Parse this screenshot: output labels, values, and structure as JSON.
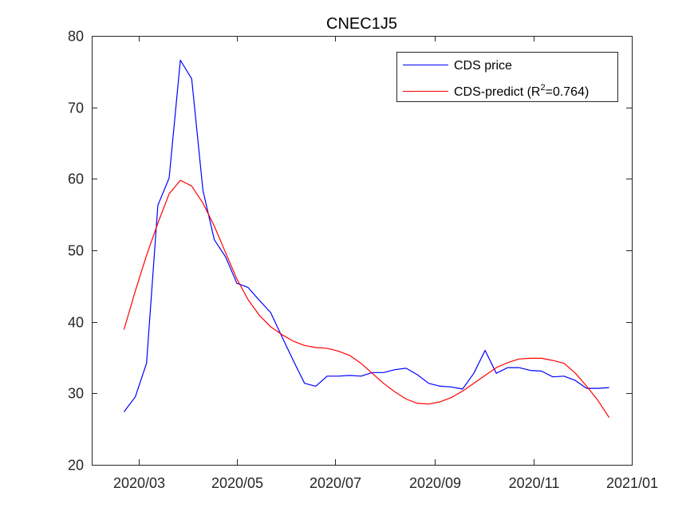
{
  "chart_data": {
    "type": "line",
    "title": "CNEC1J5",
    "xlabel": "",
    "ylabel": "",
    "x_type": "date",
    "xlim": [
      "2020-02-01",
      "2021-01-01"
    ],
    "ylim": [
      20,
      80
    ],
    "x_ticks": [
      {
        "date": "2020-03-01",
        "label": "2020/03"
      },
      {
        "date": "2020-05-01",
        "label": "2020/05"
      },
      {
        "date": "2020-07-01",
        "label": "2020/07"
      },
      {
        "date": "2020-09-01",
        "label": "2020/09"
      },
      {
        "date": "2020-11-01",
        "label": "2020/11"
      },
      {
        "date": "2021-01-01",
        "label": "2021/01"
      }
    ],
    "y_ticks": [
      20,
      30,
      40,
      50,
      60,
      70,
      80
    ],
    "grid": false,
    "legend_position": "top-right",
    "series": [
      {
        "name": "CDS price",
        "color": "#0000ff",
        "points": [
          [
            "2020-02-21",
            27.4
          ],
          [
            "2020-02-28",
            29.5
          ],
          [
            "2020-03-06",
            34.2
          ],
          [
            "2020-03-13",
            56.3
          ],
          [
            "2020-03-20",
            60.1
          ],
          [
            "2020-03-27",
            76.6
          ],
          [
            "2020-04-03",
            74.0
          ],
          [
            "2020-04-10",
            58.4
          ],
          [
            "2020-04-17",
            51.5
          ],
          [
            "2020-04-24",
            49.1
          ],
          [
            "2020-05-01",
            45.4
          ],
          [
            "2020-05-08",
            44.8
          ],
          [
            "2020-05-15",
            43.0
          ],
          [
            "2020-05-22",
            41.3
          ],
          [
            "2020-05-29",
            37.9
          ],
          [
            "2020-06-05",
            34.6
          ],
          [
            "2020-06-12",
            31.4
          ],
          [
            "2020-06-19",
            31.0
          ],
          [
            "2020-06-26",
            32.4
          ],
          [
            "2020-07-03",
            32.4
          ],
          [
            "2020-07-10",
            32.5
          ],
          [
            "2020-07-17",
            32.4
          ],
          [
            "2020-07-24",
            32.9
          ],
          [
            "2020-07-31",
            32.9
          ],
          [
            "2020-08-07",
            33.3
          ],
          [
            "2020-08-14",
            33.5
          ],
          [
            "2020-08-21",
            32.6
          ],
          [
            "2020-08-28",
            31.4
          ],
          [
            "2020-09-04",
            31.0
          ],
          [
            "2020-09-11",
            30.9
          ],
          [
            "2020-09-18",
            30.6
          ],
          [
            "2020-09-25",
            32.8
          ],
          [
            "2020-10-02",
            36.0
          ],
          [
            "2020-10-09",
            32.8
          ],
          [
            "2020-10-16",
            33.6
          ],
          [
            "2020-10-23",
            33.6
          ],
          [
            "2020-10-30",
            33.2
          ],
          [
            "2020-11-06",
            33.1
          ],
          [
            "2020-11-13",
            32.3
          ],
          [
            "2020-11-20",
            32.4
          ],
          [
            "2020-11-27",
            31.8
          ],
          [
            "2020-12-04",
            30.7
          ],
          [
            "2020-12-11",
            30.7
          ],
          [
            "2020-12-18",
            30.8
          ]
        ]
      },
      {
        "name": "CDS-predict (R²=0.764)",
        "color": "#ff0000",
        "points": [
          [
            "2020-02-21",
            38.9
          ],
          [
            "2020-02-28",
            44.3
          ],
          [
            "2020-03-06",
            49.3
          ],
          [
            "2020-03-13",
            53.8
          ],
          [
            "2020-03-20",
            57.9
          ],
          [
            "2020-03-27",
            59.8
          ],
          [
            "2020-04-03",
            59.0
          ],
          [
            "2020-04-10",
            56.6
          ],
          [
            "2020-04-17",
            53.4
          ],
          [
            "2020-04-24",
            49.7
          ],
          [
            "2020-05-01",
            46.0
          ],
          [
            "2020-05-08",
            43.1
          ],
          [
            "2020-05-15",
            40.9
          ],
          [
            "2020-05-22",
            39.3
          ],
          [
            "2020-05-29",
            38.2
          ],
          [
            "2020-06-05",
            37.3
          ],
          [
            "2020-06-12",
            36.7
          ],
          [
            "2020-06-19",
            36.4
          ],
          [
            "2020-06-26",
            36.3
          ],
          [
            "2020-07-03",
            35.9
          ],
          [
            "2020-07-10",
            35.3
          ],
          [
            "2020-07-17",
            34.2
          ],
          [
            "2020-07-24",
            32.8
          ],
          [
            "2020-07-31",
            31.4
          ],
          [
            "2020-08-07",
            30.2
          ],
          [
            "2020-08-14",
            29.2
          ],
          [
            "2020-08-21",
            28.6
          ],
          [
            "2020-08-28",
            28.5
          ],
          [
            "2020-09-04",
            28.8
          ],
          [
            "2020-09-11",
            29.4
          ],
          [
            "2020-09-18",
            30.3
          ],
          [
            "2020-09-25",
            31.4
          ],
          [
            "2020-10-02",
            32.5
          ],
          [
            "2020-10-09",
            33.6
          ],
          [
            "2020-10-16",
            34.3
          ],
          [
            "2020-10-23",
            34.8
          ],
          [
            "2020-10-30",
            34.9
          ],
          [
            "2020-11-06",
            34.9
          ],
          [
            "2020-11-13",
            34.6
          ],
          [
            "2020-11-20",
            34.2
          ],
          [
            "2020-11-27",
            32.8
          ],
          [
            "2020-12-04",
            31.0
          ],
          [
            "2020-12-11",
            29.0
          ],
          [
            "2020-12-18",
            26.6
          ]
        ]
      }
    ],
    "legend": {
      "entries": [
        {
          "label": "CDS price",
          "color": "#0000ff"
        },
        {
          "label_prefix": "CDS-predict (R",
          "label_sup": "2",
          "label_suffix": "=0.764)",
          "color": "#ff0000"
        }
      ]
    }
  }
}
